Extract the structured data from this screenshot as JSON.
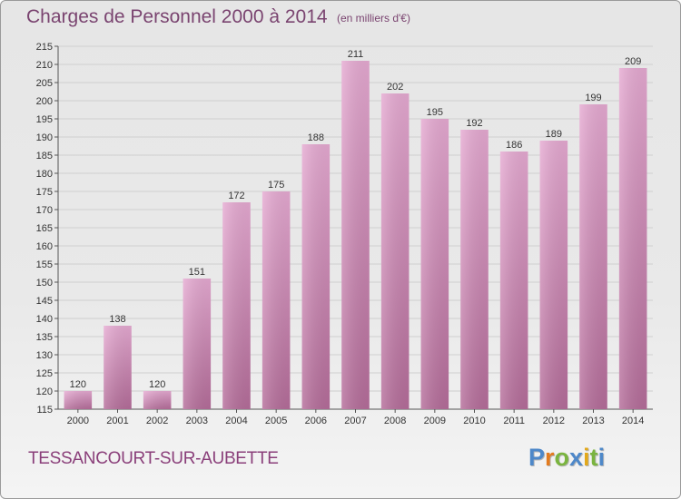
{
  "header": {
    "title": "Charges de Personnel 2000 à 2014",
    "subtitle": "(en milliers d'€)"
  },
  "footer": {
    "commune": "TESSANCOURT-SUR-AUBETTE",
    "brand": "Proxiti"
  },
  "colors": {
    "bar_top": "#e6aad2",
    "bar_bottom": "#b56d9a",
    "grid": "#cfcfcf",
    "accent": "#7a4470"
  },
  "chart_data": {
    "type": "bar",
    "title": "Charges de Personnel 2000 à 2014",
    "subtitle": "(en milliers d'€)",
    "categories": [
      "2000",
      "2001",
      "2002",
      "2003",
      "2004",
      "2005",
      "2006",
      "2007",
      "2008",
      "2009",
      "2010",
      "2011",
      "2012",
      "2013",
      "2014"
    ],
    "values": [
      120,
      138,
      120,
      151,
      172,
      175,
      188,
      211,
      202,
      195,
      192,
      186,
      189,
      199,
      209
    ],
    "ylim": [
      115,
      215
    ],
    "yticks": [
      115,
      120,
      125,
      130,
      135,
      140,
      145,
      150,
      155,
      160,
      165,
      170,
      175,
      180,
      185,
      190,
      195,
      200,
      205,
      210,
      215
    ],
    "grid": true,
    "data_labels": true
  }
}
